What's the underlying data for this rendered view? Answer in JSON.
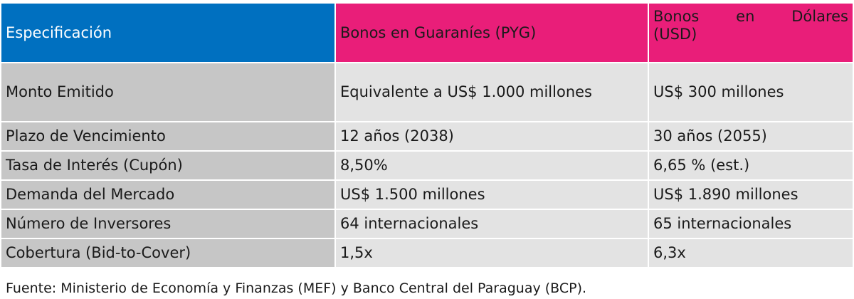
{
  "header": {
    "col1": "Especificación",
    "col2": "Bonos en Guaraníes (PYG)",
    "col3_words": [
      "Bonos",
      "en",
      "Dólares"
    ],
    "col3_line2": "(USD)"
  },
  "rows": [
    {
      "label": "Monto Emitido",
      "pyg": "Equivalente a US$ 1.000 millones",
      "usd": "US$ 300 millones"
    },
    {
      "label": "Plazo de Vencimiento",
      "pyg": "12 años (2038)",
      "usd": "30 años (2055)"
    },
    {
      "label": "Tasa de Interés (Cupón)",
      "pyg": "8,50%",
      "usd": "6,65 % (est.)"
    },
    {
      "label": "Demanda del Mercado",
      "pyg": "US$ 1.500 millones",
      "usd": "US$ 1.890 millones"
    },
    {
      "label": "Número de Inversores",
      "pyg": "64 internacionales",
      "usd": "65 internacionales"
    },
    {
      "label": "Cobertura (Bid-to-Cover)",
      "pyg": "1,5x",
      "usd": "6,3x"
    }
  ],
  "footer": "Fuente: Ministerio de Economía y Finanzas (MEF) y Banco Central del Paraguay (BCP).",
  "colors": {
    "header_blue": "#0070c0",
    "header_pink": "#e91e79",
    "label_gray": "#c6c6c6",
    "value_gray": "#e3e3e3"
  }
}
